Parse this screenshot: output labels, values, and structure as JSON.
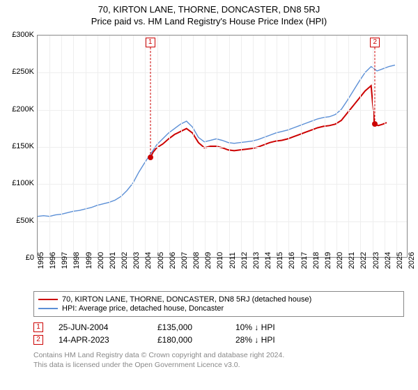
{
  "title_main": "70, KIRTON LANE, THORNE, DONCASTER, DN8 5RJ",
  "title_sub": "Price paid vs. HM Land Registry's House Price Index (HPI)",
  "chart": {
    "type": "line",
    "background_color": "#ffffff",
    "grid_color": "#eeeeee",
    "border_color": "#888888",
    "ylim": [
      0,
      300000
    ],
    "ytick_step": 50000,
    "yticks": [
      0,
      50000,
      100000,
      150000,
      200000,
      250000,
      300000
    ],
    "ytick_labels": [
      "£0",
      "£50K",
      "£100K",
      "£150K",
      "£200K",
      "£250K",
      "£300K"
    ],
    "xlim": [
      1995,
      2026
    ],
    "xticks": [
      1995,
      1996,
      1997,
      1998,
      1999,
      2000,
      2001,
      2002,
      2003,
      2004,
      2005,
      2006,
      2007,
      2008,
      2009,
      2010,
      2011,
      2012,
      2013,
      2014,
      2015,
      2016,
      2017,
      2018,
      2019,
      2020,
      2021,
      2022,
      2023,
      2024,
      2025,
      2026
    ],
    "label_fontsize": 11,
    "series": [
      {
        "name": "property",
        "label": "70, KIRTON LANE, THORNE, DONCASTER, DN8 5RJ (detached house)",
        "color": "#cc0000",
        "line_width": 2,
        "data": [
          [
            2004.48,
            135000
          ],
          [
            2004.7,
            142000
          ],
          [
            2005,
            148000
          ],
          [
            2005.5,
            153000
          ],
          [
            2006,
            160000
          ],
          [
            2006.5,
            166000
          ],
          [
            2007,
            170000
          ],
          [
            2007.5,
            174000
          ],
          [
            2008,
            168000
          ],
          [
            2008.5,
            155000
          ],
          [
            2009,
            148000
          ],
          [
            2009.5,
            150000
          ],
          [
            2010,
            150000
          ],
          [
            2010.5,
            148000
          ],
          [
            2011,
            145000
          ],
          [
            2011.5,
            144000
          ],
          [
            2012,
            145000
          ],
          [
            2012.5,
            146000
          ],
          [
            2013,
            147000
          ],
          [
            2013.5,
            149000
          ],
          [
            2014,
            152000
          ],
          [
            2014.5,
            155000
          ],
          [
            2015,
            157000
          ],
          [
            2015.5,
            158000
          ],
          [
            2016,
            160000
          ],
          [
            2016.5,
            163000
          ],
          [
            2017,
            166000
          ],
          [
            2017.5,
            169000
          ],
          [
            2018,
            172000
          ],
          [
            2018.5,
            175000
          ],
          [
            2019,
            177000
          ],
          [
            2019.5,
            178000
          ],
          [
            2020,
            180000
          ],
          [
            2020.5,
            185000
          ],
          [
            2021,
            195000
          ],
          [
            2021.5,
            205000
          ],
          [
            2022,
            215000
          ],
          [
            2022.5,
            225000
          ],
          [
            2023,
            232000
          ],
          [
            2023.28,
            180000
          ],
          [
            2023.6,
            178000
          ],
          [
            2024,
            180000
          ],
          [
            2024.3,
            182000
          ]
        ]
      },
      {
        "name": "hpi",
        "label": "HPI: Average price, detached house, Doncaster",
        "color": "#5b8fd6",
        "line_width": 1.4,
        "data": [
          [
            1995,
            55000
          ],
          [
            1995.5,
            56000
          ],
          [
            1996,
            55000
          ],
          [
            1996.5,
            57000
          ],
          [
            1997,
            58000
          ],
          [
            1997.5,
            60000
          ],
          [
            1998,
            62000
          ],
          [
            1998.5,
            63000
          ],
          [
            1999,
            65000
          ],
          [
            1999.5,
            67000
          ],
          [
            2000,
            70000
          ],
          [
            2000.5,
            72000
          ],
          [
            2001,
            74000
          ],
          [
            2001.5,
            77000
          ],
          [
            2002,
            82000
          ],
          [
            2002.5,
            90000
          ],
          [
            2003,
            100000
          ],
          [
            2003.5,
            115000
          ],
          [
            2004,
            128000
          ],
          [
            2004.5,
            140000
          ],
          [
            2005,
            152000
          ],
          [
            2005.5,
            160000
          ],
          [
            2006,
            168000
          ],
          [
            2006.5,
            174000
          ],
          [
            2007,
            180000
          ],
          [
            2007.5,
            184000
          ],
          [
            2008,
            176000
          ],
          [
            2008.5,
            162000
          ],
          [
            2009,
            156000
          ],
          [
            2009.5,
            158000
          ],
          [
            2010,
            160000
          ],
          [
            2010.5,
            158000
          ],
          [
            2011,
            155000
          ],
          [
            2011.5,
            154000
          ],
          [
            2012,
            155000
          ],
          [
            2012.5,
            156000
          ],
          [
            2013,
            157000
          ],
          [
            2013.5,
            159000
          ],
          [
            2014,
            162000
          ],
          [
            2014.5,
            165000
          ],
          [
            2015,
            168000
          ],
          [
            2015.5,
            170000
          ],
          [
            2016,
            172000
          ],
          [
            2016.5,
            175000
          ],
          [
            2017,
            178000
          ],
          [
            2017.5,
            181000
          ],
          [
            2018,
            184000
          ],
          [
            2018.5,
            187000
          ],
          [
            2019,
            189000
          ],
          [
            2019.5,
            190000
          ],
          [
            2020,
            193000
          ],
          [
            2020.5,
            200000
          ],
          [
            2021,
            212000
          ],
          [
            2021.5,
            225000
          ],
          [
            2022,
            238000
          ],
          [
            2022.5,
            250000
          ],
          [
            2023,
            258000
          ],
          [
            2023.5,
            252000
          ],
          [
            2024,
            255000
          ],
          [
            2024.5,
            258000
          ],
          [
            2025,
            260000
          ]
        ]
      }
    ],
    "markers": [
      {
        "id": "1",
        "x": 2004.48,
        "y": 135000,
        "color": "#cc0000"
      },
      {
        "id": "2",
        "x": 2023.28,
        "y": 180000,
        "color": "#cc0000"
      }
    ]
  },
  "legend": {
    "items": [
      {
        "color": "#cc0000",
        "label": "70, KIRTON LANE, THORNE, DONCASTER, DN8 5RJ (detached house)"
      },
      {
        "color": "#5b8fd6",
        "label": "HPI: Average price, detached house, Doncaster"
      }
    ]
  },
  "transactions": [
    {
      "id": "1",
      "date": "25-JUN-2004",
      "price": "£135,000",
      "pct": "10% ↓ HPI",
      "color": "#cc0000"
    },
    {
      "id": "2",
      "date": "14-APR-2023",
      "price": "£180,000",
      "pct": "28% ↓ HPI",
      "color": "#cc0000"
    }
  ],
  "footer_line1": "Contains HM Land Registry data © Crown copyright and database right 2024.",
  "footer_line2": "This data is licensed under the Open Government Licence v3.0."
}
